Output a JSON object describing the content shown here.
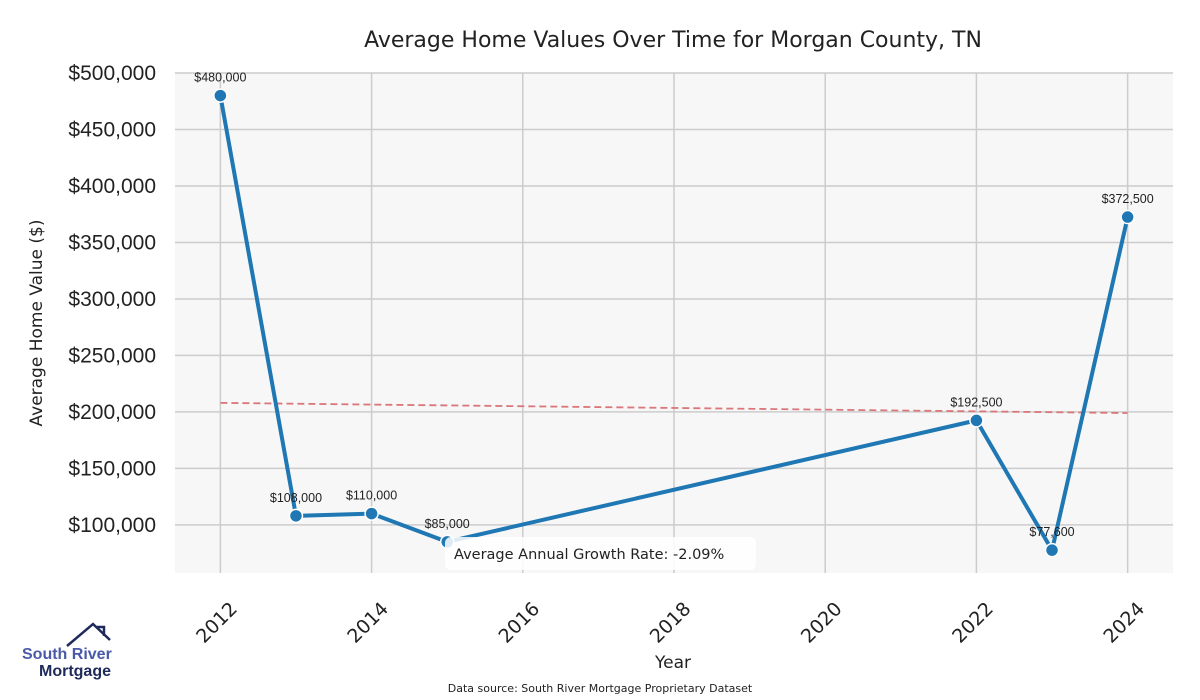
{
  "chart_data": {
    "type": "line",
    "title": "Average Home Values Over Time for Morgan County, TN",
    "xlabel": "Year",
    "ylabel": "Average Home Value ($)",
    "x": [
      2012,
      2013,
      2014,
      2015,
      2022,
      2023,
      2024
    ],
    "series": [
      {
        "name": "Average Home Value",
        "values": [
          480000,
          108000,
          110000,
          85000,
          192500,
          77600,
          372500
        ],
        "labels": [
          "$480,000",
          "$108,000",
          "$110,000",
          "$85,000",
          "$192,500",
          "$77,600",
          "$372,500"
        ],
        "color": "#1f77b4"
      }
    ],
    "trend_line": {
      "x": [
        2012,
        2024
      ],
      "y": [
        208000,
        199000
      ],
      "color": "#d9777b",
      "style": "dashed"
    },
    "xlim": [
      2011.4,
      2024.6
    ],
    "ylim": [
      57400,
      500000
    ],
    "x_ticks": [
      2012,
      2014,
      2016,
      2018,
      2020,
      2022,
      2024
    ],
    "x_tick_labels": [
      "2012",
      "2014",
      "2016",
      "2018",
      "2020",
      "2022",
      "2024"
    ],
    "y_ticks": [
      100000,
      150000,
      200000,
      250000,
      300000,
      350000,
      400000,
      450000,
      500000
    ],
    "y_tick_labels": [
      "$100,000",
      "$150,000",
      "$200,000",
      "$250,000",
      "$300,000",
      "$350,000",
      "$400,000",
      "$450,000",
      "$500,000"
    ],
    "grid": true,
    "annotation": "Average Annual Growth Rate: -2.09%",
    "source": "Data source: South River Mortgage Proprietary Dataset",
    "colors": {
      "plot_bg": "#f7f7f7",
      "grid": "#cccccc"
    }
  },
  "logo": {
    "line1": "South River",
    "line2": "Mortgage",
    "color1": "#4a5aa8",
    "color2": "#1e2a5a"
  }
}
